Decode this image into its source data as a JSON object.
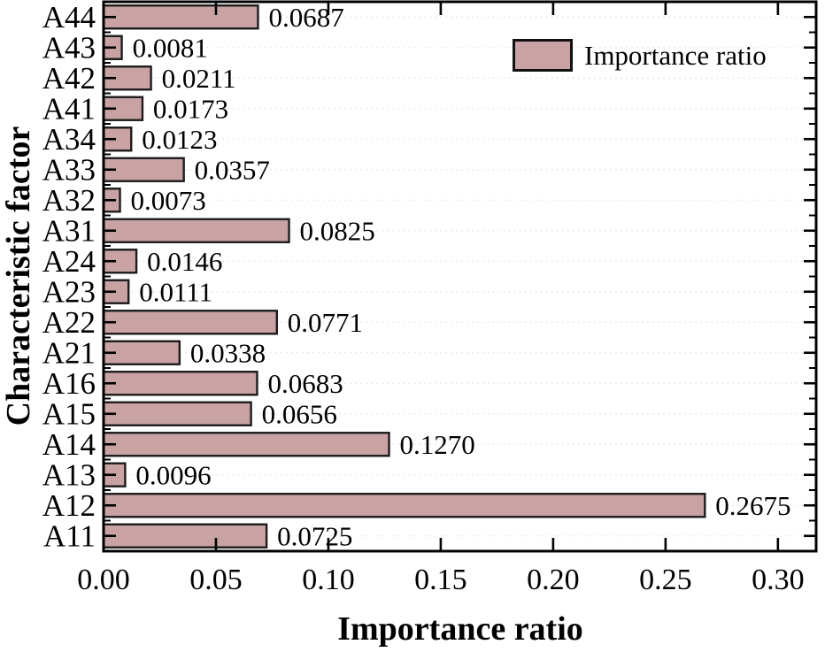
{
  "chart_data": {
    "type": "bar",
    "orientation": "horizontal",
    "title": "",
    "xlabel": "Importance ratio",
    "ylabel": "Characteristic factor",
    "legend": "Importance ratio",
    "legend_position": "upper-right-inside",
    "grid": "horizontal-dashed",
    "xlim": [
      0,
      0.317
    ],
    "xticks": [
      {
        "value": 0.0,
        "label": "0.00"
      },
      {
        "value": 0.05,
        "label": "0.05"
      },
      {
        "value": 0.1,
        "label": "0.10"
      },
      {
        "value": 0.15,
        "label": "0.15"
      },
      {
        "value": 0.2,
        "label": "0.20"
      },
      {
        "value": 0.25,
        "label": "0.25"
      },
      {
        "value": 0.3,
        "label": "0.30"
      }
    ],
    "bars": [
      {
        "category": "A44",
        "value": 0.0687,
        "label": "0.0687"
      },
      {
        "category": "A43",
        "value": 0.0081,
        "label": "0.0081"
      },
      {
        "category": "A42",
        "value": 0.0211,
        "label": "0.0211"
      },
      {
        "category": "A41",
        "value": 0.0173,
        "label": "0.0173"
      },
      {
        "category": "A34",
        "value": 0.0123,
        "label": "0.0123"
      },
      {
        "category": "A33",
        "value": 0.0357,
        "label": "0.0357"
      },
      {
        "category": "A32",
        "value": 0.0073,
        "label": "0.0073"
      },
      {
        "category": "A31",
        "value": 0.0825,
        "label": "0.0825"
      },
      {
        "category": "A24",
        "value": 0.0146,
        "label": "0.0146"
      },
      {
        "category": "A23",
        "value": 0.0111,
        "label": "0.0111"
      },
      {
        "category": "A22",
        "value": 0.0771,
        "label": "0.0771"
      },
      {
        "category": "A21",
        "value": 0.0338,
        "label": "0.0338"
      },
      {
        "category": "A16",
        "value": 0.0683,
        "label": "0.0683"
      },
      {
        "category": "A15",
        "value": 0.0656,
        "label": "0.0656"
      },
      {
        "category": "A14",
        "value": 0.127,
        "label": "0.1270"
      },
      {
        "category": "A13",
        "value": 0.0096,
        "label": "0.0096"
      },
      {
        "category": "A12",
        "value": 0.2675,
        "label": "0.2675"
      },
      {
        "category": "A11",
        "value": 0.0725,
        "label": "0.0725"
      }
    ],
    "colors": {
      "bar_fill": "#c9a3a4",
      "bar_stroke": "#1c1c1c",
      "grid": "#ececec",
      "axis": "#000000"
    }
  }
}
